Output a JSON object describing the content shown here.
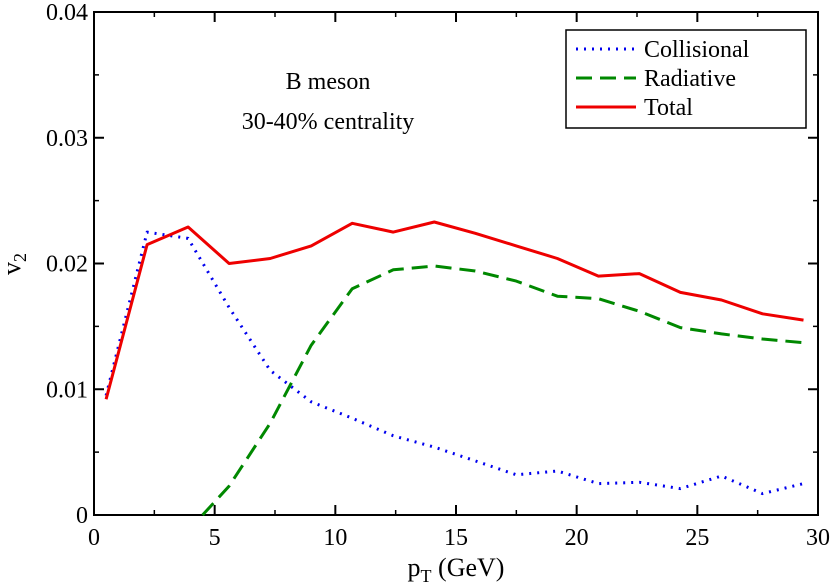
{
  "chart_data": {
    "type": "line",
    "title": "",
    "xlabel": "p",
    "xlabel_sub": "T",
    "xlabel_unit": " (GeV)",
    "ylabel": "v",
    "ylabel_sub": "2",
    "xlim": [
      0,
      30
    ],
    "ylim": [
      0,
      0.04
    ],
    "xticks": [
      0,
      5,
      10,
      15,
      20,
      25,
      30
    ],
    "yticks": [
      0,
      0.01,
      0.02,
      0.03,
      0.04
    ],
    "xtick_labels": [
      "0",
      "5",
      "10",
      "15",
      "20",
      "25",
      "30"
    ],
    "ytick_labels": [
      "0",
      "0.01",
      "0.02",
      "0.03",
      "0.04"
    ],
    "grid": false,
    "legend_position": "top-right",
    "annotations": [
      "B meson",
      "30-40% centrality"
    ],
    "series": [
      {
        "name": "Collisional",
        "color": "#0000ee",
        "style": "dotted",
        "x": [
          0.5,
          2.2,
          3.9,
          5.6,
          7.3,
          9.0,
          10.7,
          12.4,
          14.1,
          15.8,
          17.5,
          19.2,
          20.9,
          22.6,
          24.3,
          26.0,
          27.7,
          29.4
        ],
        "y": [
          0.0095,
          0.0225,
          0.022,
          0.0165,
          0.0115,
          0.009,
          0.0077,
          0.0063,
          0.0054,
          0.0043,
          0.0032,
          0.0035,
          0.0025,
          0.0026,
          0.0021,
          0.0031,
          0.0017,
          0.0025
        ]
      },
      {
        "name": "Radiative",
        "color": "#008800",
        "style": "dashed",
        "x": [
          4.5,
          5.6,
          7.3,
          9.0,
          10.7,
          12.4,
          14.1,
          15.8,
          17.5,
          19.2,
          20.9,
          22.6,
          24.3,
          26.0,
          27.7,
          29.4
        ],
        "y": [
          0.0,
          0.0023,
          0.0073,
          0.0135,
          0.018,
          0.0195,
          0.0198,
          0.0194,
          0.0186,
          0.0174,
          0.0172,
          0.0162,
          0.0149,
          0.0144,
          0.014,
          0.0137
        ]
      },
      {
        "name": "Total",
        "color": "#ee0000",
        "style": "solid",
        "x": [
          0.5,
          2.2,
          3.9,
          5.6,
          7.3,
          9.0,
          10.7,
          12.4,
          14.1,
          15.8,
          17.5,
          19.2,
          20.9,
          22.6,
          24.3,
          26.0,
          27.7,
          29.4
        ],
        "y": [
          0.0092,
          0.0215,
          0.0229,
          0.02,
          0.0204,
          0.0214,
          0.0232,
          0.0225,
          0.0233,
          0.0224,
          0.0214,
          0.0204,
          0.019,
          0.0192,
          0.0177,
          0.0171,
          0.016,
          0.0155
        ]
      }
    ]
  }
}
